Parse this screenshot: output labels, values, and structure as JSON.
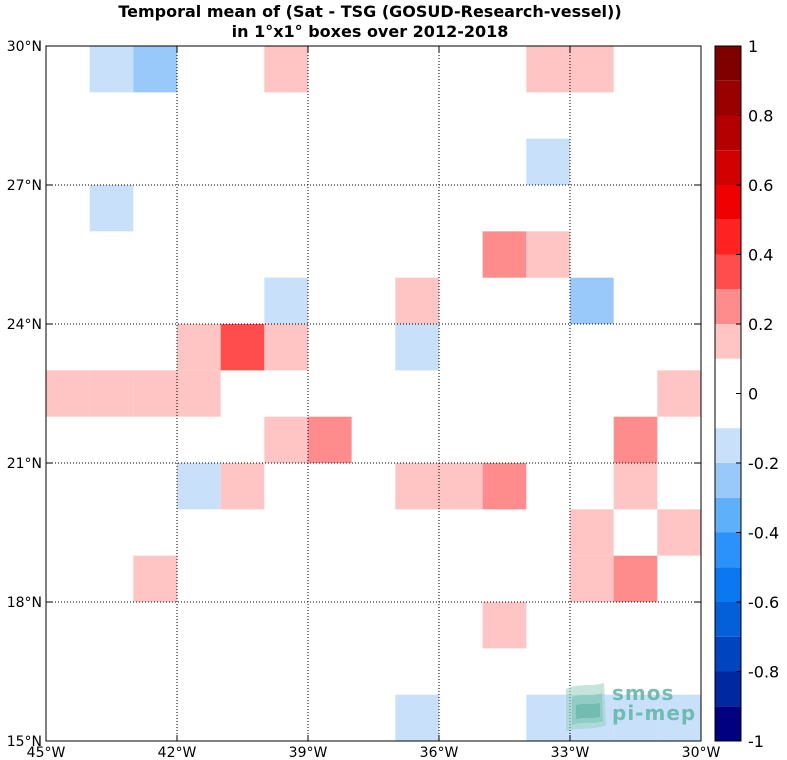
{
  "title_line1": "Temporal mean of (Sat - TSG (GOSUD-Research-vessel))",
  "title_line2": "in 1°x1° boxes over 2012-2018",
  "logo": {
    "line1": "smos",
    "line2": "pi-mep"
  },
  "chart_data": {
    "type": "heatmap",
    "title": "Temporal mean of (Sat - TSG (GOSUD-Research-vessel)) in 1°x1° boxes over 2012-2018",
    "xlim": [
      -45,
      -30
    ],
    "ylim": [
      15,
      30
    ],
    "x_ticks": [
      -45,
      -42,
      -39,
      -36,
      -33,
      -30
    ],
    "x_tick_labels": [
      "45°W",
      "42°W",
      "39°W",
      "36°W",
      "33°W",
      "30°W"
    ],
    "y_ticks": [
      15,
      18,
      21,
      24,
      27,
      30
    ],
    "y_tick_labels": [
      "15°N",
      "18°N",
      "21°N",
      "24°N",
      "27°N",
      "30°N"
    ],
    "grid": true,
    "box_size_deg": 1,
    "colorbar": {
      "range": [
        -1,
        1
      ],
      "tick_values": [
        1,
        0.8,
        0.6,
        0.4,
        0.2,
        0,
        -0.2,
        -0.4,
        -0.6,
        -0.8,
        -1
      ],
      "tick_labels": [
        "1",
        "0.8",
        "0.6",
        "0.4",
        "0.2",
        "0",
        "-0.2",
        "-0.4",
        "-0.6",
        "-0.8",
        "-1"
      ],
      "levels": [
        {
          "min": 0.9,
          "max": 1.0,
          "color": "#800000"
        },
        {
          "min": 0.8,
          "max": 0.9,
          "color": "#9a0000"
        },
        {
          "min": 0.7,
          "max": 0.8,
          "color": "#b40000"
        },
        {
          "min": 0.6,
          "max": 0.7,
          "color": "#d20000"
        },
        {
          "min": 0.5,
          "max": 0.6,
          "color": "#f00000"
        },
        {
          "min": 0.4,
          "max": 0.5,
          "color": "#ff2222"
        },
        {
          "min": 0.3,
          "max": 0.4,
          "color": "#ff4c4c"
        },
        {
          "min": 0.2,
          "max": 0.3,
          "color": "#ff8c8c"
        },
        {
          "min": 0.1,
          "max": 0.2,
          "color": "#ffc4c4"
        },
        {
          "min": -0.1,
          "max": 0.1,
          "color": "#ffffff"
        },
        {
          "min": -0.2,
          "max": -0.1,
          "color": "#c8e0fa"
        },
        {
          "min": -0.3,
          "max": -0.2,
          "color": "#99c9fb"
        },
        {
          "min": -0.4,
          "max": -0.3,
          "color": "#5fb0fa"
        },
        {
          "min": -0.5,
          "max": -0.4,
          "color": "#2a92fa"
        },
        {
          "min": -0.6,
          "max": -0.5,
          "color": "#0a78f0"
        },
        {
          "min": -0.7,
          "max": -0.6,
          "color": "#0460d8"
        },
        {
          "min": -0.8,
          "max": -0.7,
          "color": "#0044c0"
        },
        {
          "min": -0.9,
          "max": -0.8,
          "color": "#0028a0"
        },
        {
          "min": -1.0,
          "max": -0.9,
          "color": "#000080"
        }
      ]
    },
    "cells": [
      {
        "lon": -44,
        "lat": 29,
        "value": -0.15
      },
      {
        "lon": -43,
        "lat": 29,
        "value": -0.25
      },
      {
        "lon": -40,
        "lat": 29,
        "value": 0.15
      },
      {
        "lon": -34,
        "lat": 29,
        "value": 0.15
      },
      {
        "lon": -33,
        "lat": 29,
        "value": 0.15
      },
      {
        "lon": -34,
        "lat": 27,
        "value": -0.15
      },
      {
        "lon": -44,
        "lat": 26,
        "value": -0.15
      },
      {
        "lon": -35,
        "lat": 25,
        "value": 0.25
      },
      {
        "lon": -34,
        "lat": 25,
        "value": 0.15
      },
      {
        "lon": -40,
        "lat": 24,
        "value": -0.15
      },
      {
        "lon": -37,
        "lat": 24,
        "value": 0.15
      },
      {
        "lon": -33,
        "lat": 24,
        "value": -0.25
      },
      {
        "lon": -42,
        "lat": 23,
        "value": 0.15
      },
      {
        "lon": -41,
        "lat": 23,
        "value": 0.35
      },
      {
        "lon": -40,
        "lat": 23,
        "value": 0.15
      },
      {
        "lon": -37,
        "lat": 23,
        "value": -0.15
      },
      {
        "lon": -45,
        "lat": 22,
        "value": 0.15
      },
      {
        "lon": -44,
        "lat": 22,
        "value": 0.15
      },
      {
        "lon": -43,
        "lat": 22,
        "value": 0.15
      },
      {
        "lon": -42,
        "lat": 22,
        "value": 0.15
      },
      {
        "lon": -31,
        "lat": 22,
        "value": 0.15
      },
      {
        "lon": -40,
        "lat": 21,
        "value": 0.15
      },
      {
        "lon": -39,
        "lat": 21,
        "value": 0.25
      },
      {
        "lon": -32,
        "lat": 21,
        "value": 0.25
      },
      {
        "lon": -42,
        "lat": 20,
        "value": -0.15
      },
      {
        "lon": -41,
        "lat": 20,
        "value": 0.15
      },
      {
        "lon": -37,
        "lat": 20,
        "value": 0.15
      },
      {
        "lon": -36,
        "lat": 20,
        "value": 0.15
      },
      {
        "lon": -35,
        "lat": 20,
        "value": 0.25
      },
      {
        "lon": -32,
        "lat": 20,
        "value": 0.15
      },
      {
        "lon": -33,
        "lat": 19,
        "value": 0.15
      },
      {
        "lon": -31,
        "lat": 19,
        "value": 0.15
      },
      {
        "lon": -43,
        "lat": 18,
        "value": 0.15
      },
      {
        "lon": -33,
        "lat": 18,
        "value": 0.15
      },
      {
        "lon": -32,
        "lat": 18,
        "value": 0.25
      },
      {
        "lon": -35,
        "lat": 17,
        "value": 0.15
      },
      {
        "lon": -37,
        "lat": 15,
        "value": -0.15
      },
      {
        "lon": -34,
        "lat": 15,
        "value": -0.15
      },
      {
        "lon": -33,
        "lat": 15,
        "value": -0.15
      },
      {
        "lon": -32,
        "lat": 15,
        "value": -0.15
      },
      {
        "lon": -31,
        "lat": 15,
        "value": -0.15
      }
    ]
  }
}
